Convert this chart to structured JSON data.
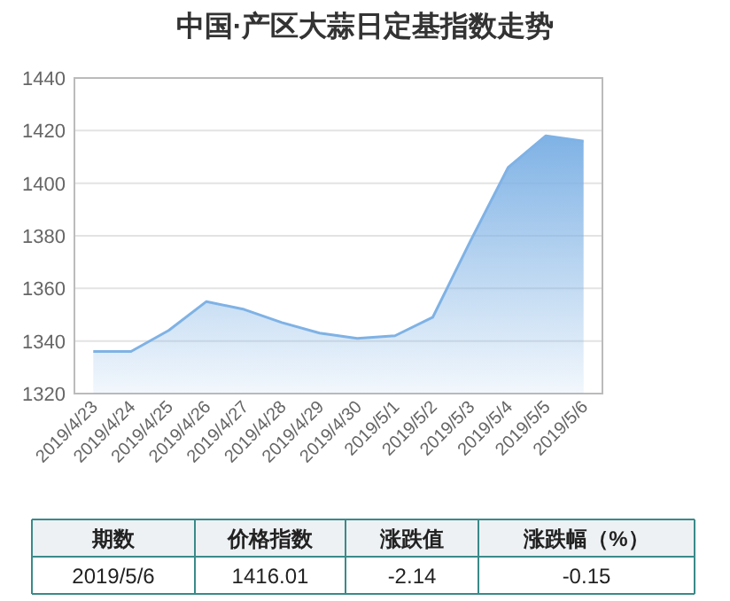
{
  "chart_data": {
    "type": "area",
    "title": "中国·产区大蒜日定基指数走势",
    "categories": [
      "2019/4/23",
      "2019/4/24",
      "2019/4/25",
      "2019/4/26",
      "2019/4/27",
      "2019/4/28",
      "2019/4/29",
      "2019/4/30",
      "2019/5/1",
      "2019/5/2",
      "2019/5/3",
      "2019/5/4",
      "2019/5/5",
      "2019/5/6"
    ],
    "series": [
      {
        "color": "#7fb2e5",
        "values": [
          1336,
          1336,
          1344,
          1355,
          1352,
          1347,
          1343,
          1341,
          1342,
          1349,
          1378,
          1406,
          1418,
          1416
        ]
      }
    ],
    "ylim": [
      1320,
      1440
    ],
    "yticks": [
      1320,
      1340,
      1360,
      1380,
      1400,
      1420,
      1440
    ],
    "grid": "y",
    "marker": "none",
    "annotations": [
      "期数",
      "价格指数",
      "涨跌值",
      "涨跌幅（%）",
      "2019/5/6",
      "1416.01",
      "-2.14",
      "-0.15"
    ]
  }
}
